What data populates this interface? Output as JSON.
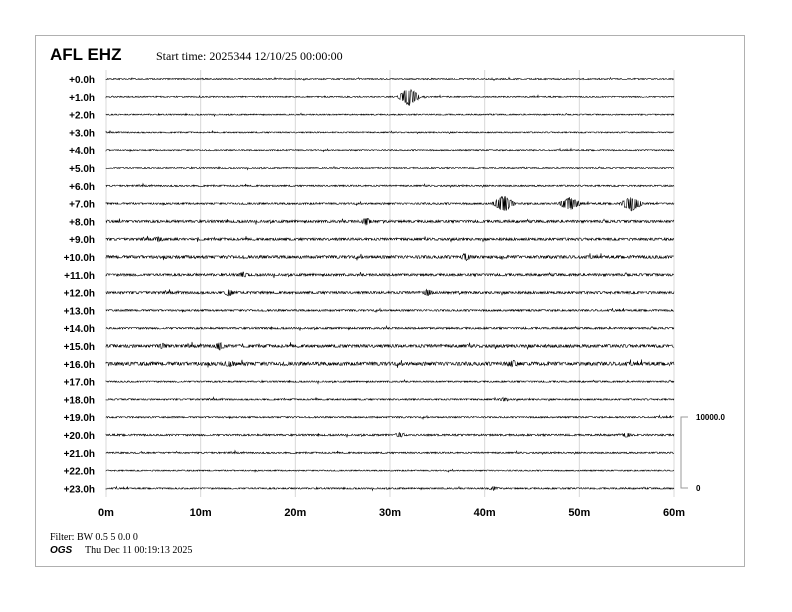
{
  "header": {
    "station": "AFL EHZ",
    "start_time": "Start time: 2025344 12/10/25 00:00:00"
  },
  "footer": {
    "filter": "Filter: BW 0.5 5 0.0 0",
    "org": "OGS",
    "plot_date": "Thu Dec 11 00:19:13 2025"
  },
  "chart_data": {
    "type": "line",
    "title": "AFL EHZ",
    "xlabel": "",
    "ylabel": "",
    "x_ticks": [
      "0m",
      "10m",
      "20m",
      "30m",
      "40m",
      "50m",
      "60m"
    ],
    "xlim": [
      0,
      60
    ],
    "row_labels": [
      "+0.0h",
      "+1.0h",
      "+2.0h",
      "+3.0h",
      "+4.0h",
      "+5.0h",
      "+6.0h",
      "+7.0h",
      "+8.0h",
      "+9.0h",
      "+10.0h",
      "+11.0h",
      "+12.0h",
      "+13.0h",
      "+14.0h",
      "+15.0h",
      "+16.0h",
      "+17.0h",
      "+18.0h",
      "+19.0h",
      "+20.0h",
      "+21.0h",
      "+22.0h",
      "+23.0h"
    ],
    "scale_bar": {
      "top": "10000.0",
      "bottom": "0"
    },
    "grid": true,
    "events": [
      {
        "row": 1,
        "minute": 32,
        "amp": 9
      },
      {
        "row": 7,
        "minute": 42,
        "amp": 8
      },
      {
        "row": 7,
        "minute": 49,
        "amp": 6
      },
      {
        "row": 7,
        "minute": 55.5,
        "amp": 7
      },
      {
        "row": 8,
        "minute": 27.5,
        "amp": 3
      },
      {
        "row": 9,
        "minute": 5.5,
        "amp": 2
      },
      {
        "row": 10,
        "minute": 38,
        "amp": 3
      },
      {
        "row": 11,
        "minute": 14.5,
        "amp": 2
      },
      {
        "row": 12,
        "minute": 13,
        "amp": 3
      },
      {
        "row": 12,
        "minute": 34,
        "amp": 3
      },
      {
        "row": 15,
        "minute": 12,
        "amp": 3
      },
      {
        "row": 15,
        "minute": 6,
        "amp": 2
      },
      {
        "row": 16,
        "minute": 13,
        "amp": 2
      },
      {
        "row": 16,
        "minute": 43,
        "amp": 2
      },
      {
        "row": 18,
        "minute": 42,
        "amp": 1.5
      },
      {
        "row": 20,
        "minute": 31,
        "amp": 2
      },
      {
        "row": 20,
        "minute": 55,
        "amp": 2
      },
      {
        "row": 23,
        "minute": 41,
        "amp": 1.5
      }
    ],
    "row_noise": [
      0.4,
      0.4,
      0.4,
      0.4,
      0.4,
      0.4,
      0.5,
      0.6,
      0.8,
      0.8,
      1.0,
      0.8,
      0.8,
      0.6,
      0.6,
      1.0,
      1.2,
      0.5,
      0.5,
      0.5,
      0.6,
      0.5,
      0.4,
      0.5
    ]
  }
}
